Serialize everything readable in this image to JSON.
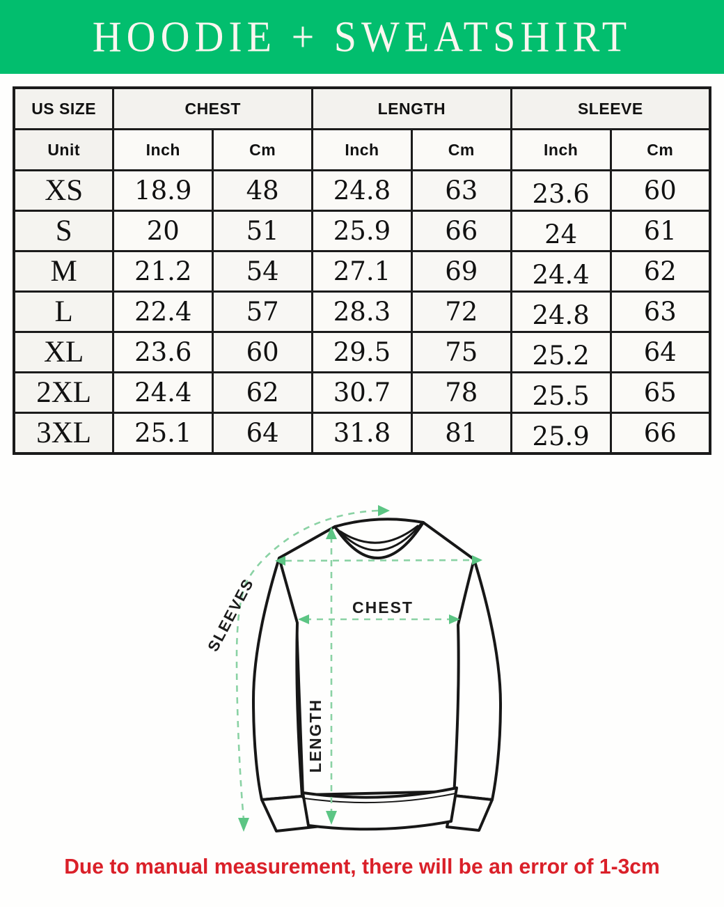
{
  "header": {
    "title": "HOODIE + SWEATSHIRT",
    "bg_color": "#02be6e",
    "text_color": "#faf6ef"
  },
  "size_table": {
    "column_groups": [
      {
        "label": "US SIZE",
        "span": 1
      },
      {
        "label": "CHEST",
        "span": 2
      },
      {
        "label": "LENGTH",
        "span": 2
      },
      {
        "label": "SLEEVE",
        "span": 2
      }
    ],
    "unit_row": [
      "Unit",
      "Inch",
      "Cm",
      "Inch",
      "Cm",
      "Inch",
      "Cm"
    ],
    "rows": [
      {
        "size": "XS",
        "chest_in": "18.9",
        "chest_cm": "48",
        "length_in": "24.8",
        "length_cm": "63",
        "sleeve_in": "23.6",
        "sleeve_cm": "60"
      },
      {
        "size": "S",
        "chest_in": "20",
        "chest_cm": "51",
        "length_in": "25.9",
        "length_cm": "66",
        "sleeve_in": "24",
        "sleeve_cm": "61"
      },
      {
        "size": "M",
        "chest_in": "21.2",
        "chest_cm": "54",
        "length_in": "27.1",
        "length_cm": "69",
        "sleeve_in": "24.4",
        "sleeve_cm": "62"
      },
      {
        "size": "L",
        "chest_in": "22.4",
        "chest_cm": "57",
        "length_in": "28.3",
        "length_cm": "72",
        "sleeve_in": "24.8",
        "sleeve_cm": "63"
      },
      {
        "size": "XL",
        "chest_in": "23.6",
        "chest_cm": "60",
        "length_in": "29.5",
        "length_cm": "75",
        "sleeve_in": "25.2",
        "sleeve_cm": "64"
      },
      {
        "size": "2XL",
        "chest_in": "24.4",
        "chest_cm": "62",
        "length_in": "30.7",
        "length_cm": "78",
        "sleeve_in": "25.5",
        "sleeve_cm": "65"
      },
      {
        "size": "3XL",
        "chest_in": "25.1",
        "chest_cm": "64",
        "length_in": "31.8",
        "length_cm": "81",
        "sleeve_in": "25.9",
        "sleeve_cm": "66"
      }
    ]
  },
  "chart_data": {
    "type": "table",
    "title": "HOODIE + SWEATSHIRT",
    "columns": [
      "US SIZE",
      "CHEST Inch",
      "CHEST Cm",
      "LENGTH Inch",
      "LENGTH Cm",
      "SLEEVE Inch",
      "SLEEVE Cm"
    ],
    "rows": [
      [
        "XS",
        18.9,
        48,
        24.8,
        63,
        23.6,
        60
      ],
      [
        "S",
        20,
        51,
        25.9,
        66,
        24,
        61
      ],
      [
        "M",
        21.2,
        54,
        27.1,
        69,
        24.4,
        62
      ],
      [
        "L",
        22.4,
        57,
        28.3,
        72,
        24.8,
        63
      ],
      [
        "XL",
        23.6,
        60,
        29.5,
        75,
        25.2,
        64
      ],
      [
        "2XL",
        24.4,
        62,
        30.7,
        78,
        25.5,
        65
      ],
      [
        "3XL",
        25.1,
        64,
        31.8,
        81,
        25.9,
        66
      ]
    ]
  },
  "diagram": {
    "labels": {
      "sleeves": "SLEEVES",
      "chest": "CHEST",
      "length": "LENGTH"
    },
    "outline_color": "#171717",
    "dash_color": "#8ad2a4",
    "arrow_color": "#5cc584"
  },
  "footnote": {
    "text": "Due to manual measurement, there will be an error of 1-3cm",
    "color": "#da2029"
  }
}
